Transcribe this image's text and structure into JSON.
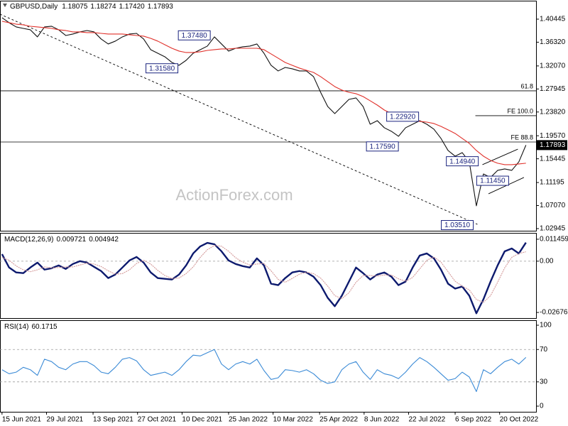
{
  "chart_data": [
    {
      "type": "line",
      "title": "GBPUSD,Daily",
      "ohlc": [
        1.18075,
        1.18274,
        {
          "value": 1.1742,
          "label": "1.17420"
        },
        1.17893
      ],
      "watermark": "ActionForex.com",
      "x": [
        "2021-06-15",
        "2021-06-22",
        "2021-06-29",
        "2021-07-06",
        "2021-07-13",
        "2021-07-20",
        "2021-07-27",
        "2021-08-03",
        "2021-08-10",
        "2021-08-17",
        "2021-08-24",
        "2021-08-31",
        "2021-09-07",
        "2021-09-14",
        "2021-09-21",
        "2021-09-28",
        "2021-10-05",
        "2021-10-12",
        "2021-10-19",
        "2021-10-26",
        "2021-11-02",
        "2021-11-09",
        "2021-11-16",
        "2021-11-23",
        "2021-11-30",
        "2021-12-07",
        "2021-12-14",
        "2021-12-21",
        "2021-12-28",
        "2022-01-04",
        "2022-01-11",
        "2022-01-18",
        "2022-01-25",
        "2022-02-01",
        "2022-02-08",
        "2022-02-15",
        "2022-02-22",
        "2022-03-01",
        "2022-03-08",
        "2022-03-15",
        "2022-03-22",
        "2022-03-29",
        "2022-04-05",
        "2022-04-12",
        "2022-04-19",
        "2022-04-26",
        "2022-05-03",
        "2022-05-10",
        "2022-05-17",
        "2022-05-24",
        "2022-05-31",
        "2022-06-07",
        "2022-06-14",
        "2022-06-21",
        "2022-06-28",
        "2022-07-05",
        "2022-07-12",
        "2022-07-19",
        "2022-07-26",
        "2022-08-02",
        "2022-08-09",
        "2022-08-16",
        "2022-08-23",
        "2022-08-30",
        "2022-09-06",
        "2022-09-13",
        "2022-09-20",
        "2022-09-27",
        "2022-10-04",
        "2022-10-11",
        "2022-10-18",
        "2022-10-25",
        "2022-11-01",
        "2022-11-08",
        "2022-11-15"
      ],
      "xlim": [
        "2021-06-13",
        "2022-11-25"
      ],
      "xticks": [
        {
          "value": "2021-06-15",
          "label": "15 Jun 2021"
        },
        {
          "value": "2021-07-29",
          "label": "29 Jul 2021"
        },
        {
          "value": "2021-09-13",
          "label": "13 Sep 2021"
        },
        {
          "value": "2021-10-27",
          "label": "27 Oct 2021"
        },
        {
          "value": "2021-12-10",
          "label": "10 Dec 2021"
        },
        {
          "value": "2022-01-25",
          "label": "25 Jan 2022"
        },
        {
          "value": "2022-03-10",
          "label": "10 Mar 2022"
        },
        {
          "value": "2022-04-25",
          "label": "25 Apr 2022"
        },
        {
          "value": "2022-06-08",
          "label": "8 Jun 2022"
        },
        {
          "value": "2022-07-22",
          "label": "22 Jul 2022"
        },
        {
          "value": "2022-09-06",
          "label": "6 Sep 2022"
        },
        {
          "value": "2022-10-20",
          "label": "20 Oct 2022"
        }
      ],
      "series": [
        {
          "color": "#111111",
          "values": [
            1.407,
            1.3981,
            1.3905,
            1.3879,
            1.3854,
            1.3727,
            1.3905,
            1.3918,
            1.3854,
            1.3752,
            1.3778,
            1.3816,
            1.3841,
            1.3816,
            1.3689,
            1.36,
            1.3651,
            1.3727,
            1.3778,
            1.379,
            1.3689,
            1.3498,
            1.3434,
            1.3371,
            1.3269,
            1.3218,
            1.3307,
            1.3434,
            1.3498,
            1.3562,
            1.3727,
            1.36,
            1.3473,
            1.3523,
            1.3549,
            1.3562,
            1.36,
            1.3434,
            1.3218,
            1.3117,
            1.318,
            1.3155,
            1.3117,
            1.3117,
            1.3015,
            1.2735,
            1.2481,
            1.2354,
            1.2481,
            1.2608,
            1.2634,
            1.2481,
            1.2163,
            1.2227,
            1.21,
            1.2036,
            1.1947,
            1.21,
            1.2163,
            1.2227,
            1.2163,
            1.2075,
            1.1909,
            1.1693,
            1.1591,
            1.1655,
            1.149,
            1.0702,
            1.1273,
            1.121,
            1.1337,
            1.1363,
            1.1337,
            1.149,
            1.17893
          ]
        },
        {
          "color": "#e0302a",
          "values": [
            1.4006,
            1.3981,
            1.3955,
            1.3943,
            1.3917,
            1.3905,
            1.3892,
            1.3879,
            1.3854,
            1.3841,
            1.3816,
            1.3816,
            1.3803,
            1.3803,
            1.379,
            1.3778,
            1.3778,
            1.3778,
            1.3765,
            1.3752,
            1.374,
            1.3701,
            1.3651,
            1.3587,
            1.3523,
            1.3473,
            1.3447,
            1.3447,
            1.346,
            1.3485,
            1.3498,
            1.3511,
            1.3511,
            1.3523,
            1.3523,
            1.3523,
            1.3523,
            1.3498,
            1.3422,
            1.3346,
            1.3269,
            1.3218,
            1.3168,
            1.3129,
            1.3091,
            1.3015,
            1.2926,
            1.2837,
            1.2774,
            1.2735,
            1.271,
            1.2659,
            1.2583,
            1.2506,
            1.2417,
            1.2354,
            1.229,
            1.2252,
            1.2227,
            1.2214,
            1.2201,
            1.2176,
            1.2125,
            1.2062,
            1.1998,
            1.1909,
            1.182,
            1.1693,
            1.1591,
            1.1515,
            1.1465,
            1.1439,
            1.1439,
            1.1452,
            1.1465
          ]
        }
      ],
      "ylim": [
        1.0256,
        1.4362
      ],
      "yticks": [
        1.40445,
        {
          "value": 1.3632,
          "label": "1.36320"
        },
        {
          "value": 1.3207,
          "label": "1.32070"
        },
        1.27945,
        {
          "value": 1.2382,
          "label": "1.23820"
        },
        {
          "value": 1.1957,
          "label": "1.19570"
        },
        1.15445,
        1.11195,
        {
          "value": 1.0707,
          "label": "1.07070"
        },
        1.02945
      ],
      "levels": [
        {
          "value": 1.2761,
          "label": "61.8"
        },
        {
          "value": 1.2316,
          "label": "FE 100.0",
          "start": "2022-09-26"
        },
        {
          "value": 1.1845,
          "label": "FE 88.8"
        }
      ],
      "annotations": [
        {
          "value": 1.3748,
          "label": "1.37480",
          "x": "2022-01-09"
        },
        {
          "value": 1.3158,
          "label": "1.31580",
          "x": "2021-12-08"
        },
        {
          "value": 1.2292,
          "label": "1.22920",
          "x": "2022-08-03"
        },
        {
          "value": 1.1759,
          "label": "1.17590",
          "x": "2022-07-14"
        },
        {
          "value": 1.1494,
          "label": "1.14940",
          "x": "2022-10-01"
        },
        {
          "value": 1.1145,
          "label": "1.11450",
          "x": "2022-10-31"
        },
        {
          "value": 1.0351,
          "label": "1.03510",
          "x": "2022-09-26"
        }
      ],
      "lines": [
        {
          "style": "dashed",
          "x": [
            "2021-06-13",
            "2022-09-28"
          ],
          "y": [
            1.4133,
            1.0371
          ]
        },
        {
          "style": "solid",
          "x": [
            "2022-10-03",
            "2022-11-07"
          ],
          "y": [
            1.1439,
            1.1717
          ]
        },
        {
          "style": "solid",
          "x": [
            "2022-10-09",
            "2022-11-13"
          ],
          "y": [
            1.0918,
            1.121
          ]
        }
      ]
    },
    {
      "type": "line",
      "title": "MACD(12,26,9)",
      "readout": [
        0.009721,
        0.004942
      ],
      "series": [
        {
          "color": "#0d1a6e",
          "values": [
            0.00368,
            -0.00331,
            -0.00588,
            -0.00625,
            -0.00331,
            -0.00074,
            -0.00441,
            -0.00368,
            -0.00221,
            -0.00404,
            -0.00147,
            0,
            -0.00074,
            -0.00294,
            -0.00515,
            -0.00882,
            -0.00698,
            -0.00331,
            0.00037,
            0.00221,
            -0.00074,
            -0.00588,
            -0.00882,
            -0.00919,
            -0.00956,
            -0.00698,
            -0.00221,
            0.00404,
            0.00772,
            0.00956,
            0.00882,
            0.00515,
            0.00037,
            -0.00147,
            -0.00257,
            -0.00331,
            0.00147,
            -0.00221,
            -0.01176,
            -0.0125,
            -0.00882,
            -0.00588,
            -0.00515,
            -0.00588,
            -0.00809,
            -0.0125,
            -0.01911,
            -0.02352,
            -0.01801,
            -0.01066,
            -0.00331,
            -0.00625,
            -0.00956,
            -0.00698,
            -0.00588,
            -0.00809,
            -0.0125,
            -0.01066,
            -0.00331,
            0.00294,
            0.00404,
            0.00147,
            -0.00441,
            -0.01176,
            -0.01433,
            -0.01323,
            -0.01801,
            -0.0272,
            -0.01985,
            -0.01066,
            -0.00221,
            0.00515,
            0.00662,
            0.00404,
            0.0097
          ]
        },
        {
          "color": "#d49a9a",
          "values": [
            0.002,
            0.0005,
            -0.0025,
            -0.0045,
            -0.0055,
            -0.0045,
            -0.003,
            -0.0035,
            -0.0033,
            -0.003,
            -0.003,
            -0.002,
            -0.001,
            -0.0015,
            -0.0028,
            -0.005,
            -0.0068,
            -0.0065,
            -0.0045,
            -0.0012,
            0.0005,
            -0.0015,
            -0.0048,
            -0.0075,
            -0.009,
            -0.0088,
            -0.0065,
            -0.003,
            0.002,
            0.006,
            0.0082,
            0.0078,
            0.0052,
            0.0018,
            -0.0005,
            -0.002,
            -0.0015,
            -0.0012,
            -0.005,
            -0.0095,
            -0.011,
            -0.009,
            -0.0068,
            -0.0058,
            -0.0065,
            -0.0088,
            -0.013,
            -0.018,
            -0.0195,
            -0.0165,
            -0.011,
            -0.0075,
            -0.0075,
            -0.0078,
            -0.0072,
            -0.0072,
            -0.0092,
            -0.0105,
            -0.0085,
            -0.004,
            0.0005,
            0.0022,
            -0.0005,
            -0.0055,
            -0.0105,
            -0.013,
            -0.015,
            -0.02,
            -0.0215,
            -0.018,
            -0.011,
            -0.0035,
            0.002,
            0.004,
            0.0049
          ]
        }
      ],
      "ylim": [
        -0.0297,
        0.0144
      ],
      "yticks": [
        0.011459,
        {
          "value": 0,
          "label": "0.00"
        },
        -0.026766
      ],
      "levels": [
        0
      ]
    },
    {
      "type": "line",
      "title": "RSI(14)",
      "readout": [
        60.1715
      ],
      "series": [
        {
          "color": "#3a8ad6",
          "values": [
            45,
            40,
            42,
            48,
            45,
            38,
            58,
            55,
            48,
            45,
            52,
            55,
            55,
            50,
            42,
            40,
            48,
            58,
            60,
            56,
            45,
            38,
            40,
            42,
            38,
            45,
            55,
            63,
            62,
            66,
            70,
            52,
            45,
            52,
            55,
            52,
            58,
            44,
            33,
            35,
            45,
            44,
            42,
            45,
            40,
            32,
            28,
            30,
            45,
            52,
            55,
            42,
            33,
            45,
            40,
            38,
            34,
            42,
            52,
            60,
            55,
            48,
            40,
            32,
            34,
            42,
            36,
            18,
            45,
            40,
            48,
            55,
            58,
            52,
            60.2
          ]
        }
      ],
      "ylim": [
        -7,
        105.3
      ],
      "yticks": [
        100,
        70,
        30,
        0
      ],
      "levels": [
        70,
        30
      ]
    }
  ]
}
